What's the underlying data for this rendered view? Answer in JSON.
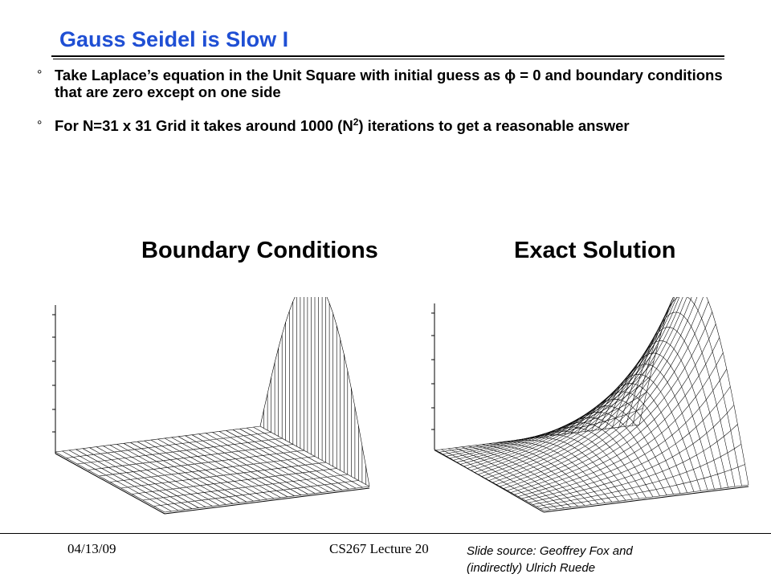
{
  "slide": {
    "title": "Gauss Seidel is Slow I",
    "bullet_mark": "°",
    "bullets": [
      {
        "text": "Take Laplace’s equation in the Unit Square with initial guess as ϕ = 0 and boundary conditions that are zero except on one side"
      },
      {
        "text_before": "For N=31 x 31 Grid it takes around 1000 (N",
        "sup": "2",
        "text_after": ") iterations to get a reasonable answer"
      }
    ],
    "panel_labels": {
      "left": "Boundary Conditions",
      "right": "Exact Solution"
    }
  },
  "footer": {
    "date": "04/13/09",
    "course": "CS267 Lecture 20",
    "source_line1": "Slide source: Geoffrey Fox and",
    "source_line2": "(indirectly) Ulrich Ruede"
  }
}
